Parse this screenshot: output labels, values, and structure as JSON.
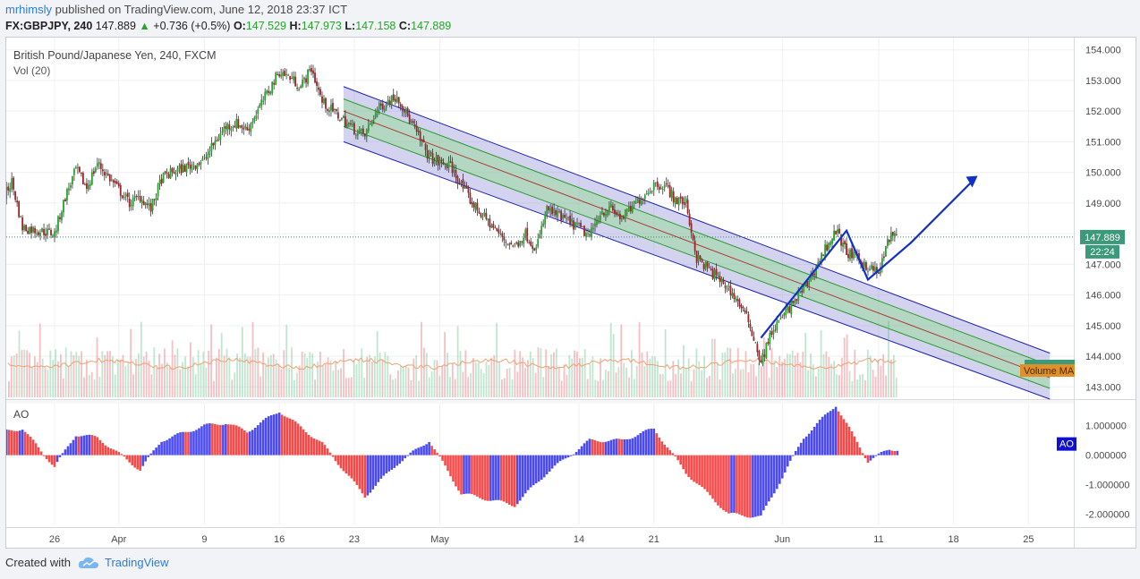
{
  "header": {
    "author": "mrhimsly",
    "published_text": "published on TradingView.com, June 12, 2018 23:37 ICT",
    "symbol": "FX:GBPJPY, 240",
    "last": "147.889",
    "change": "+0.736 (+0.5%)",
    "open_label": "O:",
    "open": "147.529",
    "high_label": "H:",
    "high": "147.973",
    "low_label": "L:",
    "low": "147.158",
    "close_label": "C:",
    "close": "147.889"
  },
  "footer": {
    "created_with": "Created with",
    "brand": "TradingView"
  },
  "colors": {
    "up": "#26a52a",
    "down": "#a2222a",
    "ao_up": "#4b4bf0",
    "ao_down": "#f44a4a",
    "accent": "#2f7bd6"
  },
  "chart_data": [
    {
      "type": "candlestick",
      "title": "British Pound/Japanese Yen, 240, FXCM",
      "subtitle": "Vol (20)",
      "ylim": [
        142.6,
        154.4
      ],
      "y_ticks": [
        "154.000",
        "153.000",
        "152.000",
        "151.000",
        "150.000",
        "149.000",
        "148.000",
        "147.000",
        "146.000",
        "145.000",
        "144.000",
        "143.000"
      ],
      "x_ticks": [
        "26",
        "Apr",
        "9",
        "16",
        "23",
        "May",
        "14",
        "21",
        "Jun",
        "11",
        "18",
        "25"
      ],
      "price_label": "147.889",
      "countdown_label": "22:24",
      "volume_ma_label": "Volume MA",
      "close_path": [
        {
          "d": "Mar 21",
          "c": 149.0
        },
        {
          "d": "Mar 22",
          "c": 149.7
        },
        {
          "d": "Mar 23",
          "c": 148.2
        },
        {
          "d": "Mar 26",
          "c": 148.0
        },
        {
          "d": "Mar 27",
          "c": 149.2
        },
        {
          "d": "Mar 28",
          "c": 150.1
        },
        {
          "d": "Mar 29",
          "c": 149.5
        },
        {
          "d": "Mar 30",
          "c": 150.3
        },
        {
          "d": "Apr 2",
          "c": 149.0
        },
        {
          "d": "Apr 3",
          "c": 149.2
        },
        {
          "d": "Apr 4",
          "c": 148.8
        },
        {
          "d": "Apr 5",
          "c": 149.8
        },
        {
          "d": "Apr 6",
          "c": 150.0
        },
        {
          "d": "Apr 9",
          "c": 150.4
        },
        {
          "d": "Apr 10",
          "c": 151.0
        },
        {
          "d": "Apr 11",
          "c": 151.5
        },
        {
          "d": "Apr 12",
          "c": 151.6
        },
        {
          "d": "Apr 13",
          "c": 151.4
        },
        {
          "d": "Apr 16",
          "c": 153.3
        },
        {
          "d": "Apr 17",
          "c": 153.1
        },
        {
          "d": "Apr 18",
          "c": 152.8
        },
        {
          "d": "Apr 19",
          "c": 153.4
        },
        {
          "d": "Apr 20",
          "c": 152.3
        },
        {
          "d": "Apr 23",
          "c": 151.4
        },
        {
          "d": "Apr 24",
          "c": 151.2
        },
        {
          "d": "Apr 25",
          "c": 152.0
        },
        {
          "d": "Apr 26",
          "c": 152.3
        },
        {
          "d": "Apr 27",
          "c": 152.5
        },
        {
          "d": "Apr 30",
          "c": 150.5
        },
        {
          "d": "May 1",
          "c": 150.3
        },
        {
          "d": "May 2",
          "c": 150.2
        },
        {
          "d": "May 3",
          "c": 149.6
        },
        {
          "d": "May 4",
          "c": 149.0
        },
        {
          "d": "May 7",
          "c": 147.8
        },
        {
          "d": "May 8",
          "c": 147.6
        },
        {
          "d": "May 9",
          "c": 148.0
        },
        {
          "d": "May 10",
          "c": 147.5
        },
        {
          "d": "May 11",
          "c": 148.8
        },
        {
          "d": "May 14",
          "c": 148.2
        },
        {
          "d": "May 15",
          "c": 147.9
        },
        {
          "d": "May 16",
          "c": 148.7
        },
        {
          "d": "May 17",
          "c": 148.8
        },
        {
          "d": "May 18",
          "c": 148.5
        },
        {
          "d": "May 21",
          "c": 149.6
        },
        {
          "d": "May 22",
          "c": 149.6
        },
        {
          "d": "May 23",
          "c": 149.1
        },
        {
          "d": "May 24",
          "c": 149.0
        },
        {
          "d": "May 25",
          "c": 147.2
        },
        {
          "d": "May 28",
          "c": 146.2
        },
        {
          "d": "May 29",
          "c": 145.7
        },
        {
          "d": "May 30",
          "c": 145.0
        },
        {
          "d": "May 31",
          "c": 143.8
        },
        {
          "d": "Jun 1",
          "c": 144.8
        },
        {
          "d": "Jun 4",
          "c": 146.2
        },
        {
          "d": "Jun 5",
          "c": 146.8
        },
        {
          "d": "Jun 6",
          "c": 147.5
        },
        {
          "d": "Jun 7",
          "c": 148.1
        },
        {
          "d": "Jun 8",
          "c": 147.4
        },
        {
          "d": "Jun 11",
          "c": 146.7
        },
        {
          "d": "Jun 12",
          "c": 147.9
        }
      ],
      "regression_channel": {
        "start": "Apr 22",
        "end": "Jun 27",
        "upper_start": 152.8,
        "upper_end": 144.1,
        "mid_start": 152.0,
        "mid_end": 143.3,
        "lower_start": 151.0,
        "lower_end": 142.6
      }
    },
    {
      "type": "bar",
      "title": "AO",
      "ylim": [
        -2.35,
        1.75
      ],
      "y_ticks": [
        "1.000000",
        "0.000000",
        "-1.000000",
        "-2.000000"
      ],
      "badge": "AO",
      "profile": [
        {
          "d": "Mar 21",
          "v": 0.8
        },
        {
          "d": "Mar 23",
          "v": 0.9
        },
        {
          "d": "Mar 26",
          "v": -0.4
        },
        {
          "d": "Mar 28",
          "v": 0.7
        },
        {
          "d": "Mar 30",
          "v": 0.6
        },
        {
          "d": "Apr 3",
          "v": -0.5
        },
        {
          "d": "Apr 5",
          "v": 0.5
        },
        {
          "d": "Apr 9",
          "v": 1.0
        },
        {
          "d": "Apr 11",
          "v": 1.1
        },
        {
          "d": "Apr 13",
          "v": 0.8
        },
        {
          "d": "Apr 16",
          "v": 1.5
        },
        {
          "d": "Apr 20",
          "v": 0.4
        },
        {
          "d": "Apr 24",
          "v": -1.4
        },
        {
          "d": "Apr 27",
          "v": -0.3
        },
        {
          "d": "Apr 30",
          "v": 0.5
        },
        {
          "d": "May 3",
          "v": -1.3
        },
        {
          "d": "May 8",
          "v": -1.7
        },
        {
          "d": "May 11",
          "v": -0.6
        },
        {
          "d": "May 15",
          "v": 0.5
        },
        {
          "d": "May 18",
          "v": 0.5
        },
        {
          "d": "May 21",
          "v": 0.9
        },
        {
          "d": "May 24",
          "v": -0.6
        },
        {
          "d": "May 28",
          "v": -2.0
        },
        {
          "d": "May 31",
          "v": -2.1
        },
        {
          "d": "Jun 4",
          "v": 0.6
        },
        {
          "d": "Jun 7",
          "v": 1.7
        },
        {
          "d": "Jun 10",
          "v": -0.2
        },
        {
          "d": "Jun 12",
          "v": 0.2
        }
      ]
    }
  ]
}
